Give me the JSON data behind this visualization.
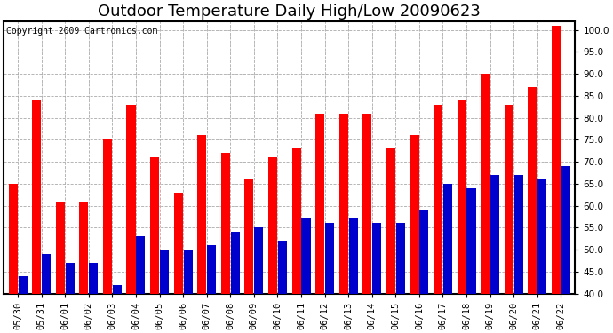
{
  "title": "Outdoor Temperature Daily High/Low 20090623",
  "copyright": "Copyright 2009 Cartronics.com",
  "dates": [
    "05/30",
    "05/31",
    "06/01",
    "06/02",
    "06/03",
    "06/04",
    "06/05",
    "06/06",
    "06/07",
    "06/08",
    "06/09",
    "06/10",
    "06/11",
    "06/12",
    "06/13",
    "06/14",
    "06/15",
    "06/16",
    "06/17",
    "06/18",
    "06/19",
    "06/20",
    "06/21",
    "06/22"
  ],
  "highs": [
    65,
    84,
    61,
    61,
    75,
    83,
    71,
    63,
    76,
    72,
    66,
    71,
    73,
    81,
    81,
    81,
    73,
    76,
    83,
    84,
    90,
    83,
    87,
    101
  ],
  "lows": [
    44,
    49,
    47,
    47,
    42,
    53,
    50,
    50,
    51,
    54,
    55,
    52,
    57,
    56,
    57,
    56,
    56,
    59,
    65,
    64,
    67,
    67,
    66,
    69
  ],
  "high_color": "#ff0000",
  "low_color": "#0000cc",
  "background_color": "#ffffff",
  "grid_color": "#aaaaaa",
  "ylim": [
    40,
    102
  ],
  "yticks": [
    40.0,
    45.0,
    50.0,
    55.0,
    60.0,
    65.0,
    70.0,
    75.0,
    80.0,
    85.0,
    90.0,
    95.0,
    100.0
  ],
  "title_fontsize": 13,
  "copyright_fontsize": 7,
  "tick_fontsize": 7.5,
  "bar_bottom": 40
}
